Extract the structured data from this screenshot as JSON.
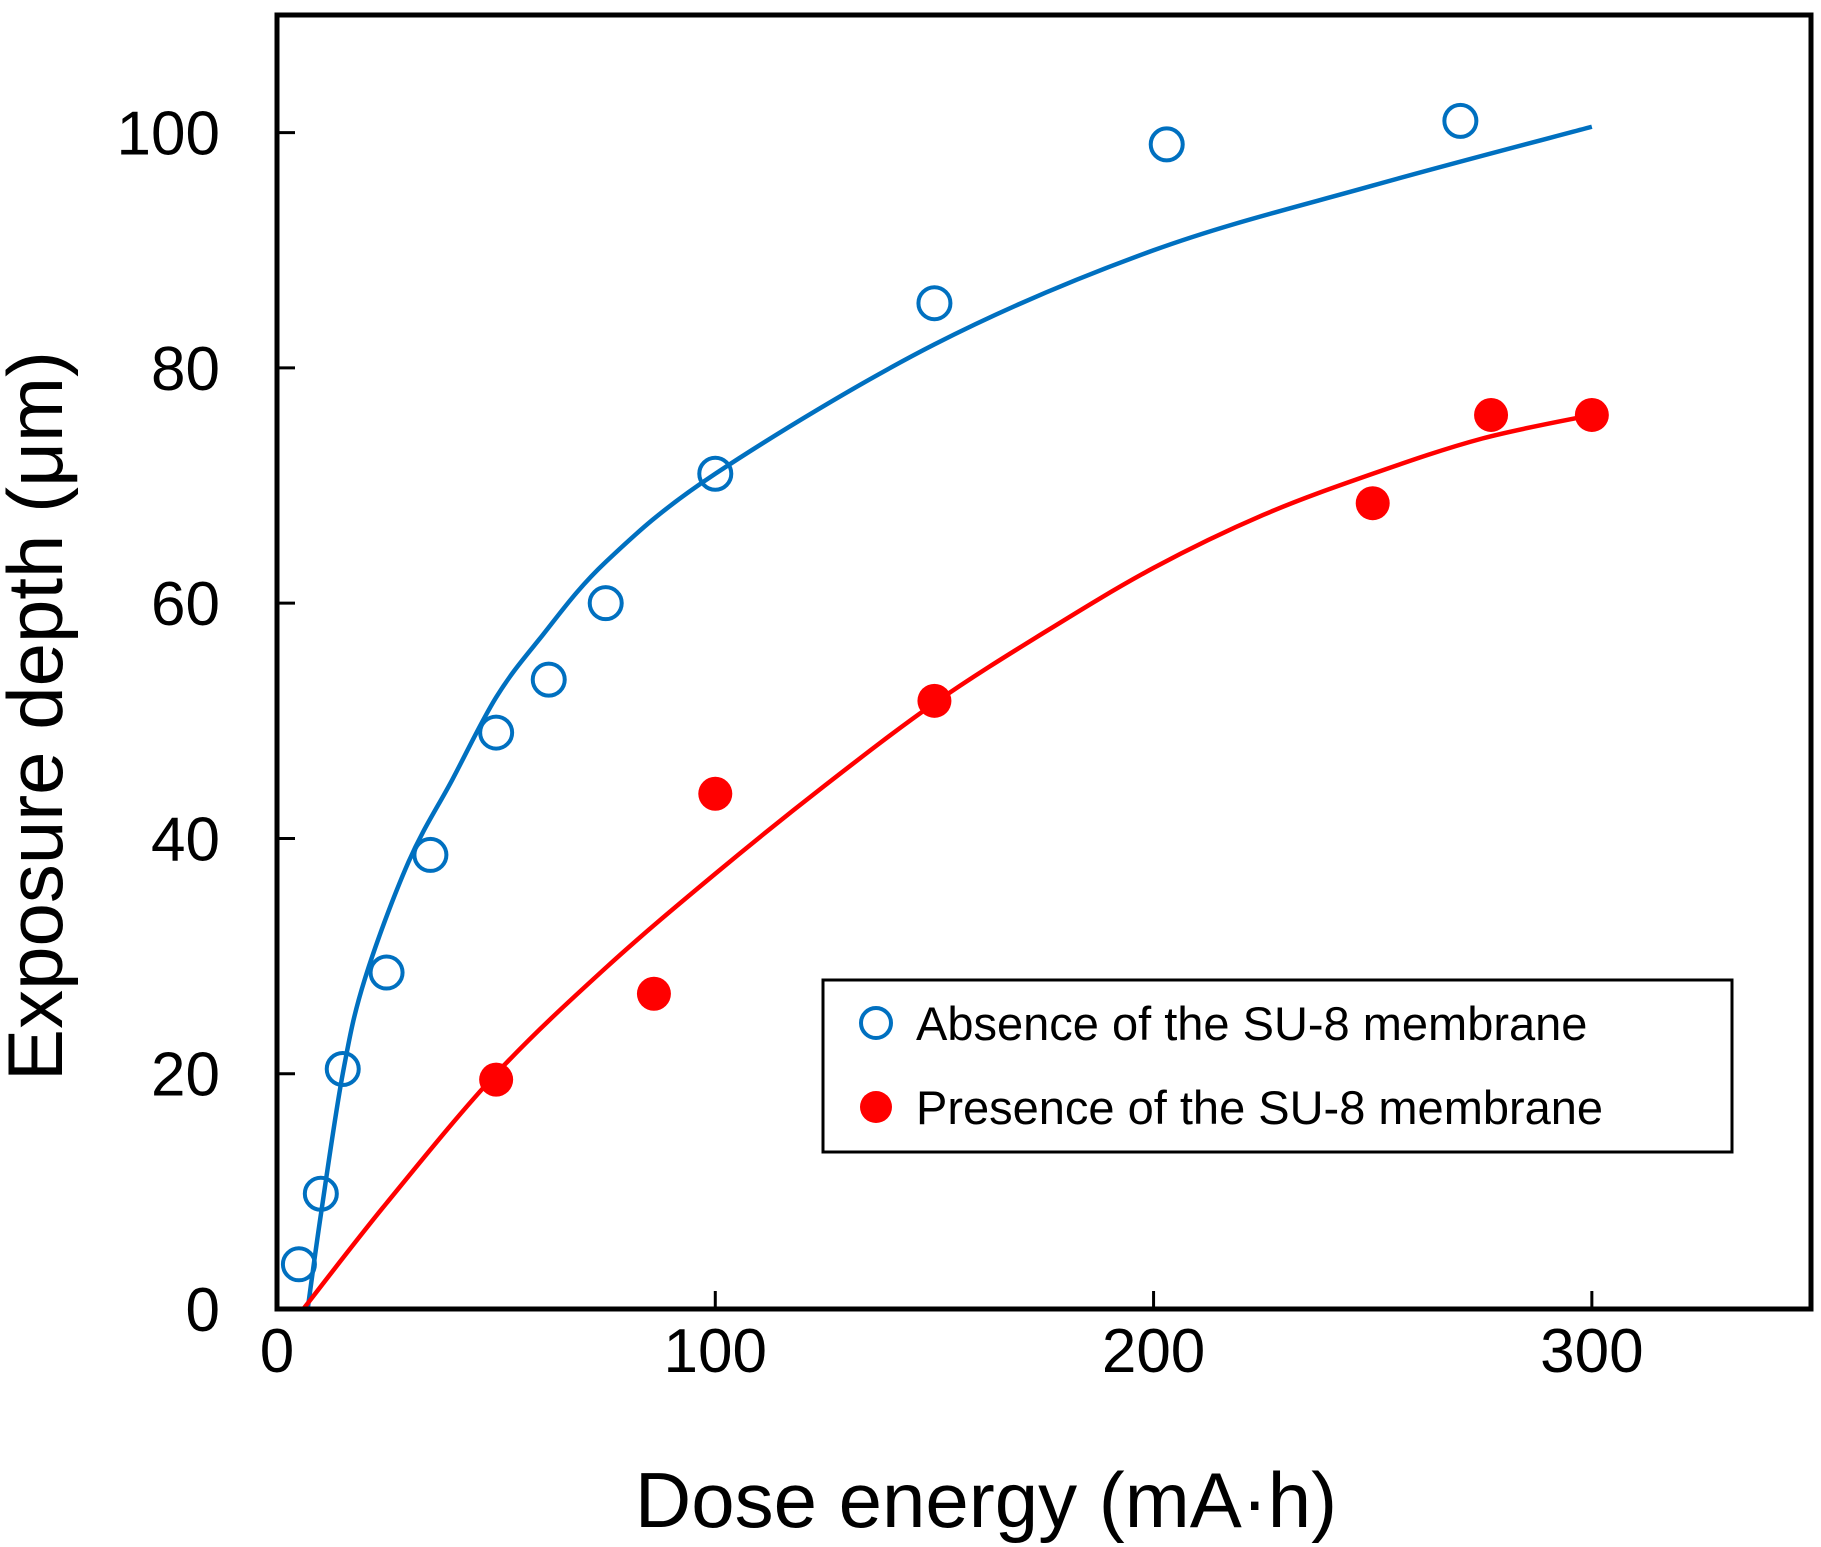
{
  "chart_data": {
    "type": "scatter",
    "title": "",
    "xlabel": "Dose energy (mA·h)",
    "ylabel": "Exposure depth (μm)",
    "xlim": [
      0,
      350
    ],
    "ylim": [
      0,
      110
    ],
    "x_ticks": [
      0,
      100,
      200,
      300
    ],
    "y_ticks": [
      0,
      20,
      40,
      60,
      80,
      100
    ],
    "x_tick_labels": [
      "0",
      "100",
      "200",
      "300"
    ],
    "y_tick_labels": [
      "0",
      "20",
      "40",
      "60",
      "80",
      "100"
    ],
    "grid": false,
    "legend_position": "bottom-right",
    "series": [
      {
        "name": "Absence of the SU-8 membrane",
        "marker": "open-circle",
        "color": "#0070C0",
        "points": [
          {
            "x": 5,
            "y": 3.8
          },
          {
            "x": 10,
            "y": 9.8
          },
          {
            "x": 15,
            "y": 20.4
          },
          {
            "x": 25,
            "y": 28.6
          },
          {
            "x": 35,
            "y": 38.6
          },
          {
            "x": 50,
            "y": 49.0
          },
          {
            "x": 62,
            "y": 53.5
          },
          {
            "x": 75,
            "y": 60.0
          },
          {
            "x": 100,
            "y": 71.0
          },
          {
            "x": 150,
            "y": 85.5
          },
          {
            "x": 203,
            "y": 99.0
          },
          {
            "x": 270,
            "y": 101.0
          }
        ],
        "fit": [
          {
            "x": 7,
            "y": 0
          },
          {
            "x": 10,
            "y": 8
          },
          {
            "x": 15,
            "y": 20
          },
          {
            "x": 20,
            "y": 28
          },
          {
            "x": 30,
            "y": 38
          },
          {
            "x": 40,
            "y": 45
          },
          {
            "x": 50,
            "y": 52
          },
          {
            "x": 60,
            "y": 57
          },
          {
            "x": 75,
            "y": 63.5
          },
          {
            "x": 100,
            "y": 71
          },
          {
            "x": 150,
            "y": 82
          },
          {
            "x": 200,
            "y": 90
          },
          {
            "x": 250,
            "y": 95.5
          },
          {
            "x": 300,
            "y": 100.5
          }
        ]
      },
      {
        "name": "Presence of the SU-8 membrane",
        "marker": "filled-circle",
        "color": "#FF0000",
        "points": [
          {
            "x": 50,
            "y": 19.5
          },
          {
            "x": 86,
            "y": 26.8
          },
          {
            "x": 100,
            "y": 43.8
          },
          {
            "x": 150,
            "y": 51.7
          },
          {
            "x": 250,
            "y": 68.5
          },
          {
            "x": 277,
            "y": 76.0
          },
          {
            "x": 300,
            "y": 76.0
          }
        ],
        "fit": [
          {
            "x": 6,
            "y": 0
          },
          {
            "x": 25,
            "y": 9
          },
          {
            "x": 50,
            "y": 20
          },
          {
            "x": 75,
            "y": 29
          },
          {
            "x": 100,
            "y": 37
          },
          {
            "x": 125,
            "y": 44.5
          },
          {
            "x": 150,
            "y": 51.5
          },
          {
            "x": 175,
            "y": 57.5
          },
          {
            "x": 200,
            "y": 63
          },
          {
            "x": 225,
            "y": 67.5
          },
          {
            "x": 250,
            "y": 71
          },
          {
            "x": 275,
            "y": 74
          },
          {
            "x": 300,
            "y": 76
          }
        ]
      }
    ]
  }
}
